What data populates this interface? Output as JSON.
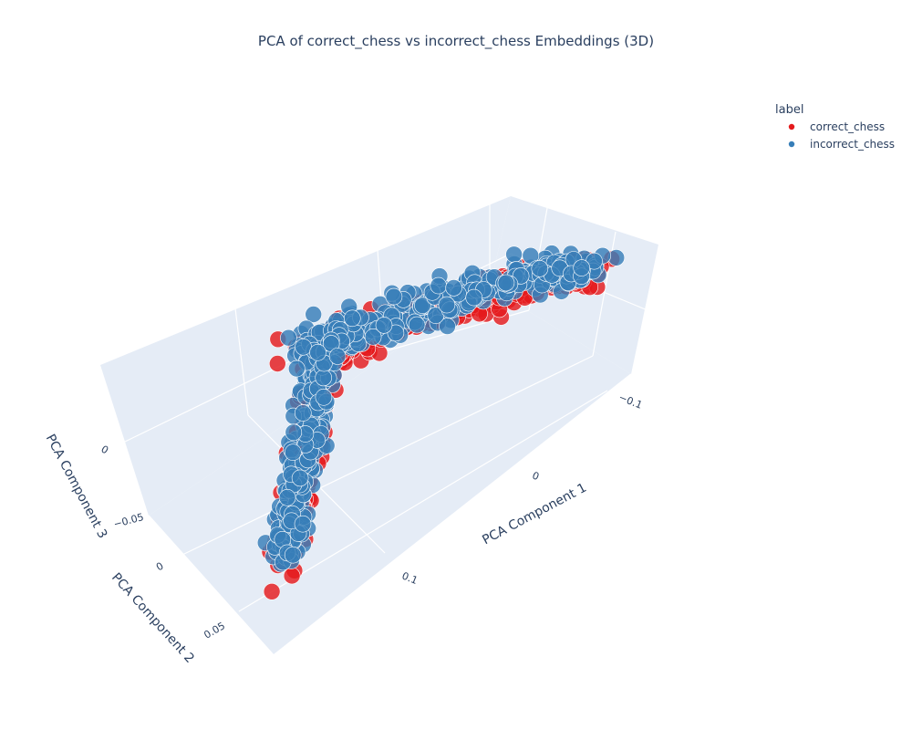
{
  "chart_data": {
    "type": "scatter",
    "projection": "3d",
    "title": "PCA of correct_chess vs incorrect_chess Embeddings (3D)",
    "axes": {
      "x": {
        "label": "PCA Component 1",
        "ticks": [
          "−0.1",
          "0",
          "0.1"
        ]
      },
      "y": {
        "label": "PCA Component 2",
        "ticks": [
          "0",
          "0.05"
        ]
      },
      "z": {
        "label": "PCA Component 3",
        "ticks": [
          "−0.05",
          "0"
        ]
      }
    },
    "legend": {
      "title": "label",
      "position": "top-right",
      "entries": [
        {
          "name": "correct_chess",
          "color": "#e41a1c"
        },
        {
          "name": "incorrect_chess",
          "color": "#377eb8"
        }
      ]
    },
    "series": [
      {
        "name": "correct_chess",
        "color": "#e41a1c",
        "approx_points": 1400
      },
      {
        "name": "incorrect_chess",
        "color": "#377eb8",
        "approx_points": 1400
      }
    ],
    "grid": true,
    "background_color": "#e5ecf6"
  }
}
